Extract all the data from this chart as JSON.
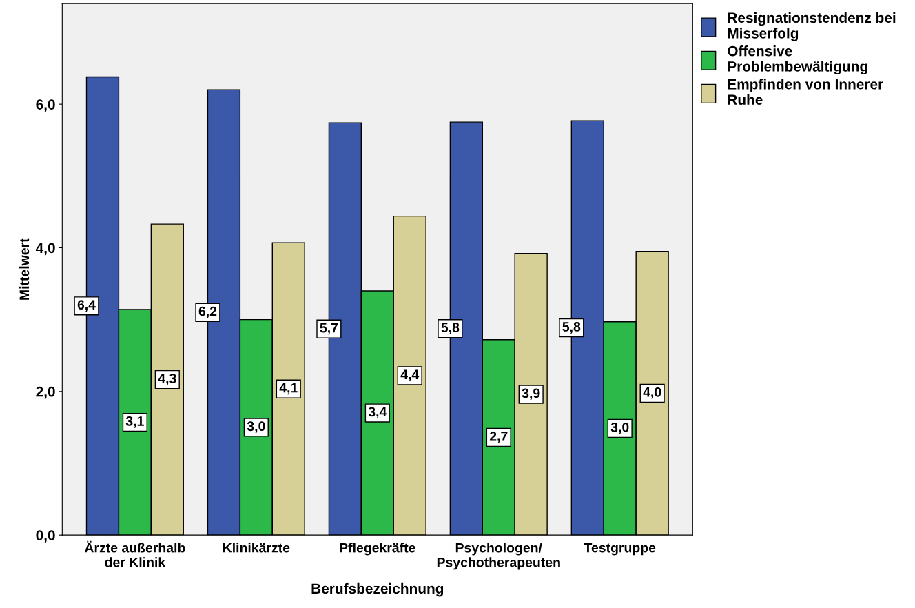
{
  "chart_data": {
    "type": "bar",
    "xlabel": "Berufsbezeichnung",
    "ylabel": "Mittelwert",
    "categories": [
      "Ärzte außerhalb\nder Klinik",
      "Klinikärzte",
      "Pflegekräfte",
      "Psychologen/\nPsychotherapeuten",
      "Testgruppe"
    ],
    "series": [
      {
        "name": "Resignationstendenz bei\nMisserfolg",
        "color": "#3c58a8",
        "values": [
          6.38,
          6.2,
          5.74,
          5.75,
          5.77
        ],
        "value_labels": [
          "6,4",
          "6,2",
          "5,7",
          "5,8",
          "5,8"
        ]
      },
      {
        "name": "Offensive\nProblembewältigung",
        "color": "#2db84a",
        "values": [
          3.14,
          3.0,
          3.4,
          2.72,
          2.97
        ],
        "value_labels": [
          "3,1",
          "3,0",
          "3,4",
          "2,7",
          "3,0"
        ]
      },
      {
        "name": "Empfinden von Innerer\nRuhe",
        "color": "#d6cf96",
        "values": [
          4.33,
          4.07,
          4.44,
          3.92,
          3.95
        ],
        "value_labels": [
          "4,3",
          "4,1",
          "4,4",
          "3,9",
          "4,0"
        ]
      }
    ],
    "ylim": [
      0,
      7.4
    ],
    "yticks": [
      {
        "value": 0,
        "label": "0,0"
      },
      {
        "value": 2,
        "label": "2,0"
      },
      {
        "value": 4,
        "label": "4,0"
      },
      {
        "value": 6,
        "label": "6,0"
      }
    ],
    "grid": false,
    "legend": "top right"
  }
}
